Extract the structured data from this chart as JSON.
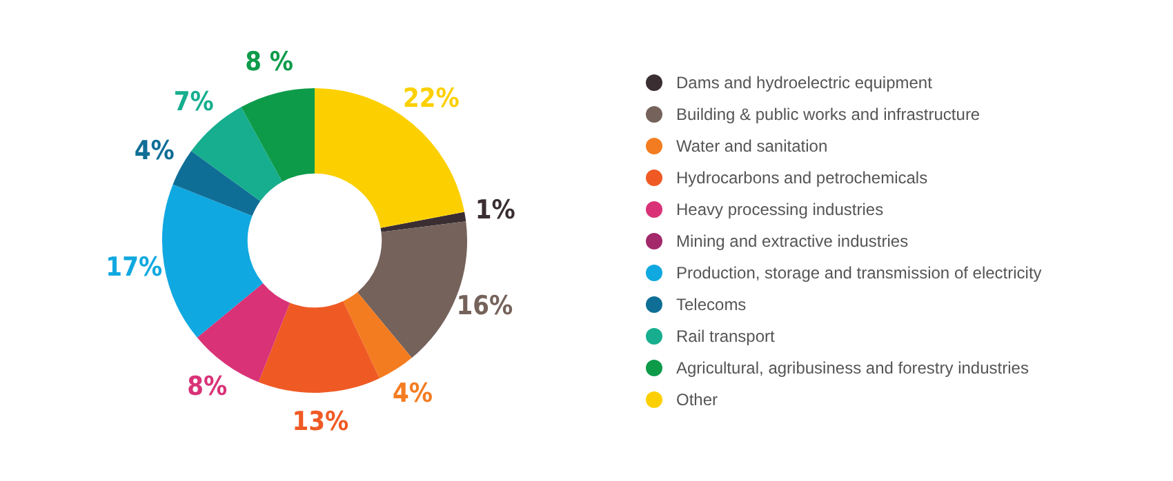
{
  "chart_data": {
    "type": "donut",
    "categories": [
      "Dams and hydroelectric equipment",
      "Building & public works and infrastructure",
      "Water and sanitation",
      "Hydrocarbons and petrochemicals",
      "Heavy processing industries",
      "Mining and extractive industries",
      "Production, storage and transmission of electricity",
      "Telecoms",
      "Rail transport",
      "Agricultural, agribusiness and forestry industries",
      "Other"
    ],
    "values": [
      1,
      16,
      4,
      13,
      8,
      0,
      17,
      4,
      7,
      8,
      22
    ],
    "value_labels": [
      "1%",
      "16%",
      "4%",
      "13%",
      "8%",
      null,
      "17%",
      "4%",
      "7%",
      "8 %",
      "22%"
    ],
    "colors": [
      "#3a2e33",
      "#75625b",
      "#f47c20",
      "#ef5a24",
      "#d93277",
      "#a3296b",
      "#10a8e0",
      "#0f6e96",
      "#16ae8e",
      "#0d9b4a",
      "#fcd000"
    ],
    "legend": "right"
  }
}
